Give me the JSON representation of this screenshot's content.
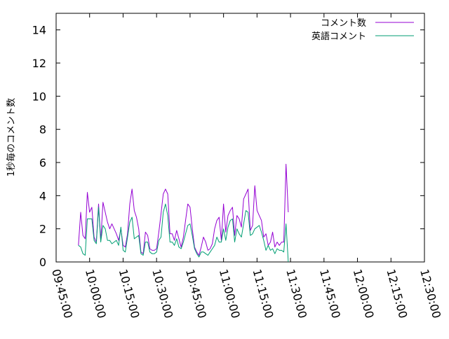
{
  "chart_data": {
    "type": "line",
    "ylabel": "1秒毎のコメント数",
    "xlabel": "",
    "title": "",
    "ylim": [
      0,
      15
    ],
    "yticks": [
      0,
      2,
      4,
      6,
      8,
      10,
      12,
      14
    ],
    "xlim": [
      "09:45:00",
      "12:30:00"
    ],
    "xticks": [
      "09:45:00",
      "10:00:00",
      "10:15:00",
      "10:30:00",
      "10:45:00",
      "11:00:00",
      "11:15:00",
      "11:30:00",
      "11:45:00",
      "12:00:00",
      "12:15:00",
      "12:30:00"
    ],
    "grid": false,
    "legend_position": "top-right",
    "series": [
      {
        "name": "コメント数",
        "color": "#9400d3",
        "points": [
          [
            "09:55:00",
            1.0
          ],
          [
            "09:56:00",
            3.0
          ],
          [
            "09:57:00",
            1.6
          ],
          [
            "09:58:00",
            1.4
          ],
          [
            "09:59:00",
            4.2
          ],
          [
            "10:00:00",
            3.0
          ],
          [
            "10:01:00",
            3.3
          ],
          [
            "10:02:00",
            1.5
          ],
          [
            "10:03:00",
            1.2
          ],
          [
            "10:04:00",
            3.5
          ],
          [
            "10:05:00",
            1.3
          ],
          [
            "10:06:00",
            3.6
          ],
          [
            "10:07:00",
            3.0
          ],
          [
            "10:08:00",
            2.4
          ],
          [
            "10:09:00",
            2.0
          ],
          [
            "10:10:00",
            2.3
          ],
          [
            "10:11:00",
            2.0
          ],
          [
            "10:12:00",
            1.7
          ],
          [
            "10:13:00",
            1.3
          ],
          [
            "10:14:00",
            2.0
          ],
          [
            "10:15:00",
            1.0
          ],
          [
            "10:16:00",
            0.9
          ],
          [
            "10:17:00",
            1.7
          ],
          [
            "10:18:00",
            3.5
          ],
          [
            "10:19:00",
            4.4
          ],
          [
            "10:20:00",
            3.1
          ],
          [
            "10:21:00",
            2.7
          ],
          [
            "10:22:00",
            2.0
          ],
          [
            "10:23:00",
            0.6
          ],
          [
            "10:24:00",
            0.5
          ],
          [
            "10:25:00",
            1.8
          ],
          [
            "10:26:00",
            1.6
          ],
          [
            "10:27:00",
            0.8
          ],
          [
            "10:28:00",
            0.7
          ],
          [
            "10:29:00",
            0.7
          ],
          [
            "10:30:00",
            0.8
          ],
          [
            "10:31:00",
            1.8
          ],
          [
            "10:32:00",
            2.9
          ],
          [
            "10:33:00",
            4.1
          ],
          [
            "10:34:00",
            4.4
          ],
          [
            "10:35:00",
            4.1
          ],
          [
            "10:36:00",
            1.7
          ],
          [
            "10:37:00",
            1.7
          ],
          [
            "10:38:00",
            1.3
          ],
          [
            "10:39:00",
            1.9
          ],
          [
            "10:40:00",
            1.4
          ],
          [
            "10:41:00",
            0.9
          ],
          [
            "10:42:00",
            1.5
          ],
          [
            "10:43:00",
            2.5
          ],
          [
            "10:44:00",
            3.5
          ],
          [
            "10:45:00",
            3.3
          ],
          [
            "10:46:00",
            2.0
          ],
          [
            "10:47:00",
            0.9
          ],
          [
            "10:48:00",
            0.6
          ],
          [
            "10:49:00",
            0.4
          ],
          [
            "10:50:00",
            0.9
          ],
          [
            "10:51:00",
            1.5
          ],
          [
            "10:52:00",
            1.2
          ],
          [
            "10:53:00",
            0.7
          ],
          [
            "10:54:00",
            0.8
          ],
          [
            "10:55:00",
            1.1
          ],
          [
            "10:56:00",
            2.0
          ],
          [
            "10:57:00",
            2.5
          ],
          [
            "10:58:00",
            2.7
          ],
          [
            "10:59:00",
            1.3
          ],
          [
            "11:00:00",
            3.5
          ],
          [
            "11:01:00",
            1.8
          ],
          [
            "11:02:00",
            2.8
          ],
          [
            "11:03:00",
            3.1
          ],
          [
            "11:04:00",
            3.3
          ],
          [
            "11:05:00",
            1.6
          ],
          [
            "11:06:00",
            2.8
          ],
          [
            "11:07:00",
            2.6
          ],
          [
            "11:08:00",
            2.1
          ],
          [
            "11:09:00",
            3.8
          ],
          [
            "11:10:00",
            4.1
          ],
          [
            "11:11:00",
            4.4
          ],
          [
            "11:12:00",
            1.9
          ],
          [
            "11:13:00",
            2.2
          ],
          [
            "11:14:00",
            4.6
          ],
          [
            "11:15:00",
            3.1
          ],
          [
            "11:16:00",
            2.8
          ],
          [
            "11:17:00",
            2.5
          ],
          [
            "11:18:00",
            1.5
          ],
          [
            "11:19:00",
            1.7
          ],
          [
            "11:20:00",
            1.0
          ],
          [
            "11:21:00",
            1.2
          ],
          [
            "11:22:00",
            1.8
          ],
          [
            "11:23:00",
            0.9
          ],
          [
            "11:24:00",
            1.2
          ],
          [
            "11:25:00",
            1.0
          ],
          [
            "11:26:00",
            1.2
          ],
          [
            "11:27:00",
            1.2
          ],
          [
            "11:28:00",
            5.9
          ],
          [
            "11:29:00",
            3.0
          ]
        ]
      },
      {
        "name": "英語コメント",
        "color": "#009e73",
        "points": [
          [
            "09:55:00",
            1.0
          ],
          [
            "09:56:00",
            0.9
          ],
          [
            "09:57:00",
            0.5
          ],
          [
            "09:58:00",
            0.4
          ],
          [
            "09:59:00",
            2.6
          ],
          [
            "10:00:00",
            2.6
          ],
          [
            "10:01:00",
            2.6
          ],
          [
            "10:02:00",
            1.3
          ],
          [
            "10:03:00",
            1.1
          ],
          [
            "10:04:00",
            3.3
          ],
          [
            "10:05:00",
            1.2
          ],
          [
            "10:06:00",
            2.2
          ],
          [
            "10:07:00",
            2.0
          ],
          [
            "10:08:00",
            1.3
          ],
          [
            "10:09:00",
            1.3
          ],
          [
            "10:10:00",
            1.1
          ],
          [
            "10:11:00",
            1.2
          ],
          [
            "10:12:00",
            1.3
          ],
          [
            "10:13:00",
            1.0
          ],
          [
            "10:14:00",
            2.1
          ],
          [
            "10:15:00",
            0.7
          ],
          [
            "10:16:00",
            0.6
          ],
          [
            "10:17:00",
            1.5
          ],
          [
            "10:18:00",
            2.4
          ],
          [
            "10:19:00",
            2.7
          ],
          [
            "10:20:00",
            1.4
          ],
          [
            "10:21:00",
            1.5
          ],
          [
            "10:22:00",
            1.6
          ],
          [
            "10:23:00",
            0.5
          ],
          [
            "10:24:00",
            0.4
          ],
          [
            "10:25:00",
            1.2
          ],
          [
            "10:26:00",
            1.2
          ],
          [
            "10:27:00",
            0.6
          ],
          [
            "10:28:00",
            0.5
          ],
          [
            "10:29:00",
            0.5
          ],
          [
            "10:30:00",
            0.6
          ],
          [
            "10:31:00",
            1.3
          ],
          [
            "10:32:00",
            1.5
          ],
          [
            "10:33:00",
            3.0
          ],
          [
            "10:34:00",
            3.5
          ],
          [
            "10:35:00",
            2.8
          ],
          [
            "10:36:00",
            1.2
          ],
          [
            "10:37:00",
            1.2
          ],
          [
            "10:38:00",
            1.0
          ],
          [
            "10:39:00",
            1.4
          ],
          [
            "10:40:00",
            0.9
          ],
          [
            "10:41:00",
            0.8
          ],
          [
            "10:42:00",
            1.2
          ],
          [
            "10:43:00",
            1.7
          ],
          [
            "10:44:00",
            2.2
          ],
          [
            "10:45:00",
            2.3
          ],
          [
            "10:46:00",
            1.6
          ],
          [
            "10:47:00",
            0.8
          ],
          [
            "10:48:00",
            0.5
          ],
          [
            "10:49:00",
            0.3
          ],
          [
            "10:50:00",
            0.6
          ],
          [
            "10:51:00",
            0.6
          ],
          [
            "10:52:00",
            0.5
          ],
          [
            "10:53:00",
            0.4
          ],
          [
            "10:54:00",
            0.6
          ],
          [
            "10:55:00",
            0.8
          ],
          [
            "10:56:00",
            1.0
          ],
          [
            "10:57:00",
            1.5
          ],
          [
            "10:58:00",
            1.2
          ],
          [
            "10:59:00",
            1.2
          ],
          [
            "11:00:00",
            2.0
          ],
          [
            "11:01:00",
            1.3
          ],
          [
            "11:02:00",
            2.1
          ],
          [
            "11:03:00",
            2.5
          ],
          [
            "11:04:00",
            2.6
          ],
          [
            "11:05:00",
            1.2
          ],
          [
            "11:06:00",
            2.0
          ],
          [
            "11:07:00",
            1.7
          ],
          [
            "11:08:00",
            1.5
          ],
          [
            "11:09:00",
            2.3
          ],
          [
            "11:10:00",
            3.1
          ],
          [
            "11:11:00",
            3.0
          ],
          [
            "11:12:00",
            1.6
          ],
          [
            "11:13:00",
            1.7
          ],
          [
            "11:14:00",
            2.0
          ],
          [
            "11:15:00",
            2.1
          ],
          [
            "11:16:00",
            2.2
          ],
          [
            "11:17:00",
            1.8
          ],
          [
            "11:18:00",
            1.3
          ],
          [
            "11:19:00",
            0.7
          ],
          [
            "11:20:00",
            1.0
          ],
          [
            "11:21:00",
            0.7
          ],
          [
            "11:22:00",
            0.8
          ],
          [
            "11:23:00",
            0.5
          ],
          [
            "11:24:00",
            0.8
          ],
          [
            "11:25:00",
            0.7
          ],
          [
            "11:26:00",
            0.7
          ],
          [
            "11:27:00",
            0.6
          ],
          [
            "11:28:00",
            2.3
          ],
          [
            "11:29:00",
            0.0
          ]
        ]
      }
    ]
  }
}
